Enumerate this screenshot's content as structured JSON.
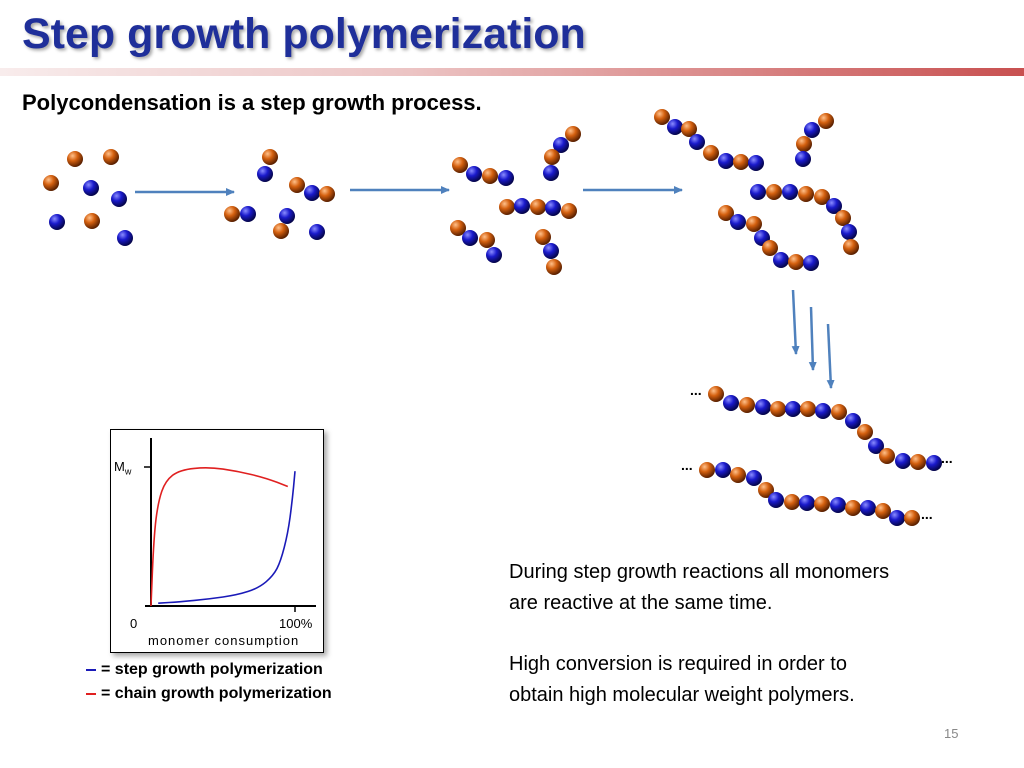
{
  "slide": {
    "title": "Step growth polymerization",
    "subtitle": "Polycondensation is a step growth process.",
    "paragraph_1_line_1": "During step growth reactions all monomers",
    "paragraph_1_line_2": "are reactive at the same time.",
    "paragraph_2_line_1": "High conversion is required in order to",
    "paragraph_2_line_2": "obtain high molecular weight polymers.",
    "slide_number": "15",
    "ellipsis": "..."
  },
  "colors": {
    "title": "#1f2f9a",
    "blue_monomer": "#1a1acc",
    "orange_monomer": "#d4600f",
    "arrow": "#4f81bd",
    "step_growth_line": "#1a1ab8",
    "chain_growth_line": "#e02020"
  },
  "legend": {
    "step": "= step growth polymerization",
    "chain": "= chain growth polymerization"
  },
  "plot": {
    "ylabel": "M",
    "ylabel_sub": "w",
    "x_tick_start": "0",
    "x_tick_end": "100%",
    "xlabel": "monomer consumption"
  },
  "chart_data": {
    "type": "line",
    "xlabel": "monomer consumption",
    "ylabel": "Mw",
    "x_ticks": [
      "0",
      "100%"
    ],
    "xlim": [
      0,
      100
    ],
    "ylim": [
      0,
      1.2
    ],
    "grid": false,
    "series": [
      {
        "name": "step growth polymerization",
        "color": "#1a1ab8",
        "x": [
          5,
          20,
          40,
          60,
          75,
          85,
          90,
          95,
          98,
          100
        ],
        "y": [
          0.02,
          0.03,
          0.05,
          0.08,
          0.13,
          0.22,
          0.32,
          0.52,
          0.75,
          0.97
        ]
      },
      {
        "name": "chain growth polymerization",
        "color": "#e02020",
        "x": [
          0,
          2,
          5,
          10,
          20,
          40,
          60,
          80,
          95
        ],
        "y": [
          0.0,
          0.5,
          0.75,
          0.9,
          0.98,
          1.0,
          0.97,
          0.92,
          0.86
        ]
      }
    ]
  }
}
